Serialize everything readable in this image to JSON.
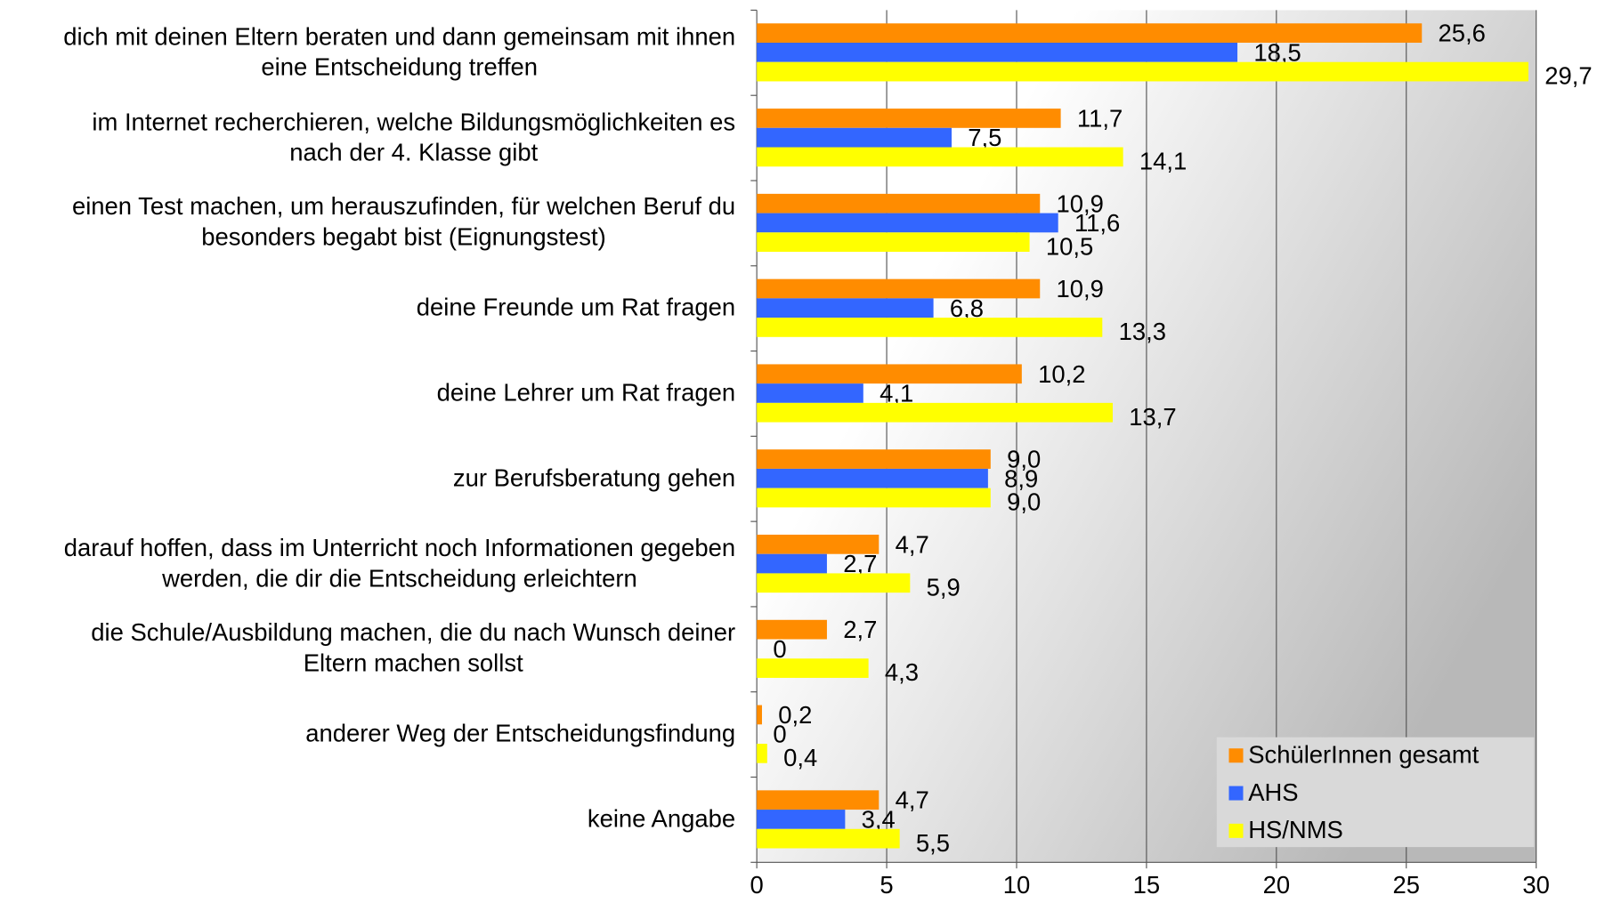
{
  "chart_data": {
    "type": "hbar",
    "categories": [
      "dich mit deinen Eltern beraten und dann gemeinsam mit ihnen\neine Entscheidung treffen",
      "im Internet recherchieren, welche Bildungsmöglichkeiten es\nnach der 4. Klasse gibt",
      "einen Test machen, um herauszufinden, für welchen Beruf du\nbesonders begabt bist (Eignungstest)",
      "deine Freunde um Rat fragen",
      "deine Lehrer um Rat fragen",
      "zur Berufsberatung gehen",
      "darauf hoffen, dass im Unterricht noch Informationen gegeben\nwerden, die dir die Entscheidung erleichtern",
      "die Schule/Ausbildung machen, die du nach Wunsch deiner\nEltern machen sollst",
      "anderer Weg der Entscheidungsfindung",
      "keine Angabe"
    ],
    "series": [
      {
        "name": "SchülerInnen gesamt",
        "color": "#ff8c00",
        "values": [
          25.6,
          11.7,
          10.9,
          10.9,
          10.2,
          9.0,
          4.7,
          2.7,
          0.2,
          4.7
        ],
        "value_labels": [
          "25,6",
          "11,7",
          "10,9",
          "10,9",
          "10,2",
          "9,0",
          "4,7",
          "2,7",
          "0,2",
          "4,7"
        ]
      },
      {
        "name": "AHS",
        "color": "#3366ff",
        "values": [
          18.5,
          7.5,
          11.6,
          6.8,
          4.1,
          8.9,
          2.7,
          0,
          0,
          3.4
        ],
        "value_labels": [
          "18,5",
          "7,5",
          "11,6",
          "6,8",
          "4,1",
          "8,9",
          "2,7",
          "0",
          "0",
          "3,4"
        ]
      },
      {
        "name": "HS/NMS",
        "color": "#ffff00",
        "values": [
          29.7,
          14.1,
          10.5,
          13.3,
          13.7,
          9.0,
          5.9,
          4.3,
          0.4,
          5.5
        ],
        "value_labels": [
          "29,7",
          "14,1",
          "10,5",
          "13,3",
          "13,7",
          "9,0",
          "5,9",
          "4,3",
          "0,4",
          "5,5"
        ]
      }
    ],
    "xlim": [
      0,
      30
    ],
    "xticks": [
      0,
      5,
      10,
      15,
      20,
      25,
      30
    ],
    "grid": true,
    "legend": "lower right"
  }
}
